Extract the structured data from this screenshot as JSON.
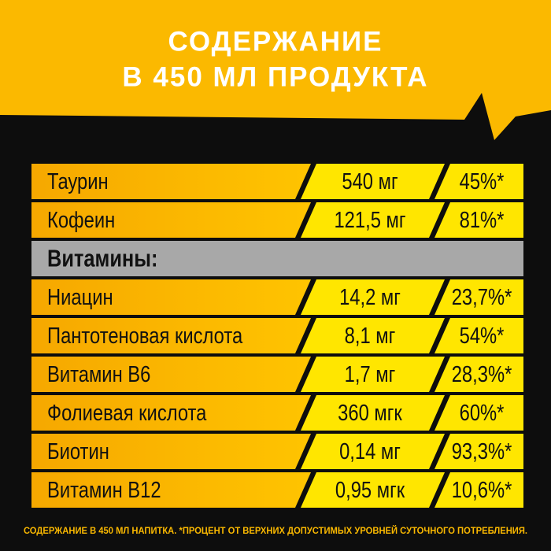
{
  "header": {
    "title_line1": "СОДЕРЖАНИЕ",
    "title_line2": "В 450 МЛ ПРОДУКТА"
  },
  "table": {
    "rows": [
      {
        "name": "Таурин",
        "amount": "540 мг",
        "percent": "45%*"
      },
      {
        "name": "Кофеин",
        "amount": "121,5 мг",
        "percent": "81%*"
      }
    ],
    "section": "Витамины:",
    "vitamin_rows": [
      {
        "name": "Ниацин",
        "amount": "14,2 мг",
        "percent": "23,7%*"
      },
      {
        "name": "Пантотеновая кислота",
        "amount": "8,1 мг",
        "percent": "54%*"
      },
      {
        "name": "Витамин B6",
        "amount": "1,7 мг",
        "percent": "28,3%*"
      },
      {
        "name": "Фолиевая кислота",
        "amount": "360 мгк",
        "percent": "60%*"
      },
      {
        "name": "Биотин",
        "amount": "0,14 мг",
        "percent": "93,3%*"
      },
      {
        "name": "Витамин B12",
        "amount": "0,95 мгк",
        "percent": "10,6%*"
      }
    ]
  },
  "footnote": "СОДЕРЖАНИЕ В 450 МЛ НАПИТКА. *ПРОЦЕНТ ОТ ВЕРХНИХ ДОПУСТИМЫХ УРОВНЕЙ СУТОЧНОГО ПОТРЕБЛЕНИЯ."
}
